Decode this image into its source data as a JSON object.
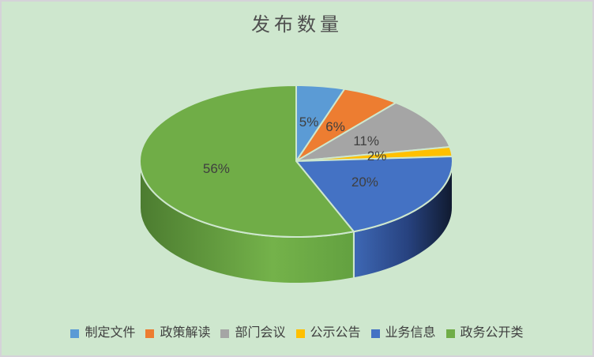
{
  "window": {
    "background": "#CEE7CE",
    "border_color": "#D5D3D8"
  },
  "header": {
    "title_color": "#4F4F4F"
  },
  "chart_data": {
    "type": "pie",
    "style": "3d",
    "title": "发布数量",
    "legend_position": "bottom",
    "direction": "clockwise",
    "start_angle_deg": 0,
    "unit": "percent",
    "categories": [
      "制定文件",
      "政策解读",
      "部门会议",
      "公示公告",
      "业务信息",
      "政务公开类"
    ],
    "values": [
      5,
      6,
      11,
      2,
      20,
      56
    ],
    "labels": [
      "5%",
      "6%",
      "11%",
      "2%",
      "20%",
      "56%"
    ],
    "colors": [
      "#5B9BD5",
      "#ED7D31",
      "#A5A5A5",
      "#FFC000",
      "#4472C4",
      "#70AD47"
    ],
    "label_color": "#3F3F3F",
    "separator_color": "#CEE7CE",
    "side_gradients": {
      "4": [
        [
          "0",
          "#3E68B5"
        ],
        [
          "0.55",
          "#27427F"
        ],
        [
          "1",
          "#101A2F"
        ]
      ],
      "5": [
        [
          "0",
          "#4C7C30"
        ],
        [
          "0.62",
          "#74B24A"
        ],
        [
          "1",
          "#63A140"
        ]
      ]
    }
  }
}
